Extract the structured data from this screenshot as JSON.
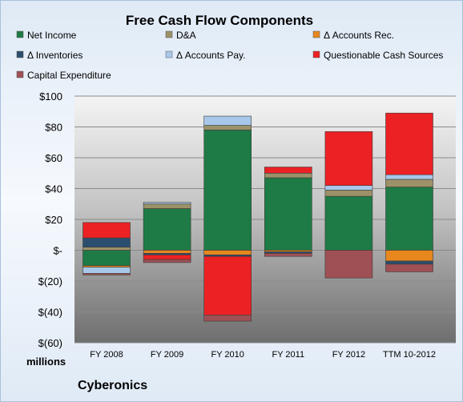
{
  "chart_data": {
    "type": "bar",
    "stacked": true,
    "title": "Free Cash Flow Components",
    "units_label": "millions",
    "company": "Cyberonics",
    "categories": [
      "FY 2008",
      "FY 2009",
      "FY 2010",
      "FY 2011",
      "FY 2012",
      "TTM 10-2012"
    ],
    "ylim": [
      -60,
      100
    ],
    "yticks": [
      100,
      80,
      60,
      40,
      20,
      0,
      -20,
      -40,
      -60
    ],
    "ytick_labels": [
      "$100",
      "$80",
      "$60",
      "$40",
      "$20",
      "$-",
      "$(20)",
      "$(40)",
      "$(60)"
    ],
    "grid": true,
    "legend_position": "top",
    "series": [
      {
        "name": "Net Income",
        "color": "#1e7b45",
        "values": [
          -10,
          27,
          78,
          47,
          35,
          41
        ]
      },
      {
        "name": "D&A",
        "color": "#9c9168",
        "values": [
          2,
          3,
          3,
          3,
          4,
          5
        ]
      },
      {
        "name": "Δ Accounts Rec.",
        "color": "#e8871e",
        "values": [
          -1,
          -2,
          -3,
          -1,
          0,
          -7
        ]
      },
      {
        "name": "Δ Inventories",
        "color": "#2c4e6e",
        "values": [
          6,
          -1,
          -1,
          -1,
          0,
          -2
        ]
      },
      {
        "name": "Δ Accounts Pay.",
        "color": "#a8c8ea",
        "values": [
          -4,
          1,
          6,
          0,
          3,
          3
        ]
      },
      {
        "name": "Questionable Cash Sources",
        "color": "#ec2124",
        "values": [
          10,
          -3,
          -38,
          4,
          35,
          40
        ]
      },
      {
        "name": "Capital Expenditure",
        "color": "#9e5055",
        "values": [
          -1,
          -2,
          -4,
          -2,
          -18,
          -5
        ]
      }
    ]
  }
}
